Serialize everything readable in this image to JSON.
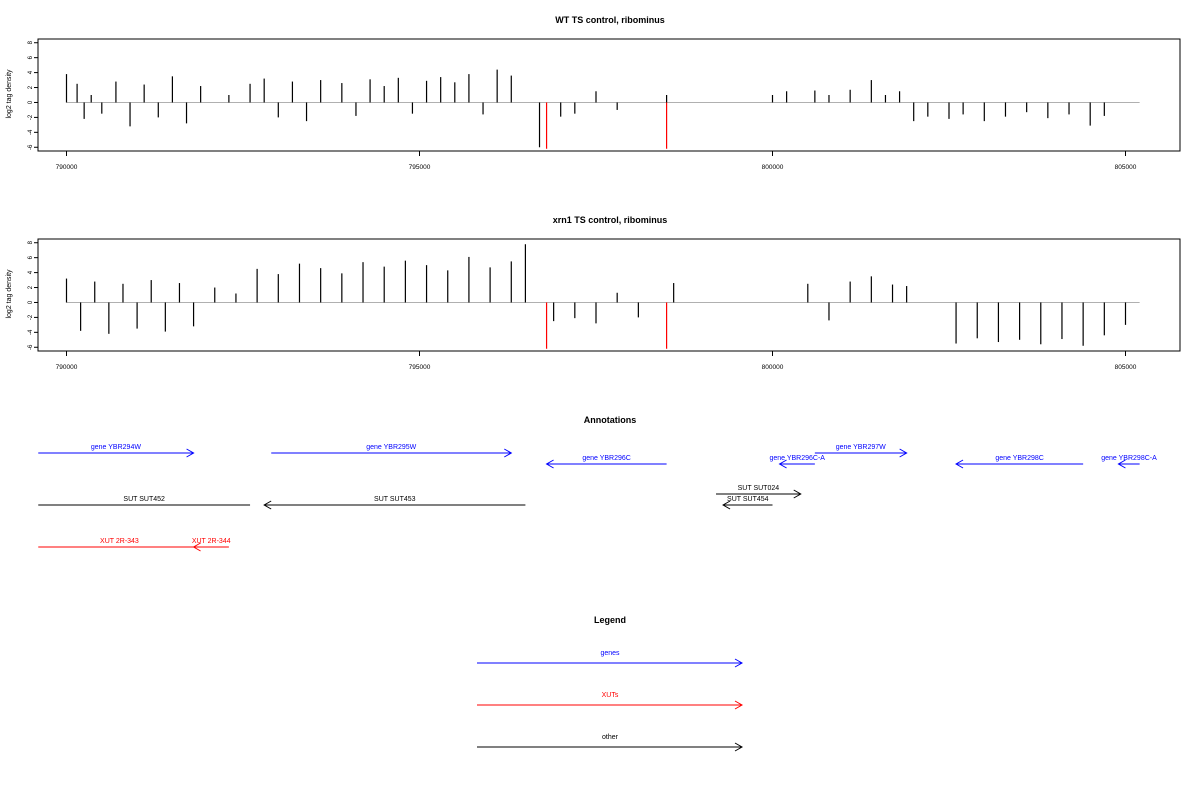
{
  "chart_data": [
    {
      "type": "bar",
      "title": "WT TS control, ribominus",
      "ylabel": "log2 tag density",
      "xlabel": "",
      "xlim": [
        790000,
        805000
      ],
      "ylim": [
        -6.5,
        8.5
      ],
      "xticks": [
        "790000",
        "795000",
        "800000",
        "805000"
      ],
      "yticks": [
        "8",
        "6",
        "4",
        "2",
        "0",
        "-2",
        "-4",
        "-6"
      ],
      "baseline": [
        790000,
        805200
      ],
      "series": [
        {
          "color": "#000000",
          "x": [
            790000,
            790150,
            790250,
            790350,
            790500,
            790700,
            790900,
            791100,
            791300,
            791500,
            791700,
            791900,
            792300,
            792600,
            792800,
            793000,
            793200,
            793400,
            793600,
            793900,
            794100,
            794300,
            794500,
            794700,
            794900,
            795100,
            795300,
            795500,
            795700,
            795900,
            796100,
            796300,
            796700,
            797000,
            797200,
            797500,
            797800,
            798500,
            800000,
            800200,
            800600,
            800800,
            801100,
            801400,
            801600,
            801800,
            802000,
            802200,
            802500,
            802700,
            803000,
            803300,
            803600,
            803900,
            804200,
            804500,
            804700
          ],
          "values": [
            3.8,
            2.5,
            -2.2,
            1.0,
            -1.5,
            2.8,
            -3.2,
            2.4,
            -2.0,
            3.5,
            -2.8,
            2.2,
            1.0,
            2.5,
            3.2,
            -2.0,
            2.8,
            -2.5,
            3.0,
            2.6,
            -1.8,
            3.1,
            2.2,
            3.3,
            -1.5,
            2.9,
            3.4,
            2.7,
            3.8,
            -1.6,
            4.4,
            3.6,
            -6.0,
            -1.9,
            -1.5,
            1.5,
            -1.0,
            1.0,
            1.0,
            1.5,
            1.6,
            1.0,
            1.7,
            3.0,
            1.0,
            1.5,
            -2.5,
            -1.9,
            -2.2,
            -1.6,
            -2.5,
            -1.9,
            -1.3,
            -2.1,
            -1.6,
            -3.1,
            -1.8
          ]
        },
        {
          "color": "#ff0000",
          "x": [
            796800,
            798500
          ],
          "values": [
            -6.2,
            -6.2
          ]
        }
      ]
    },
    {
      "type": "bar",
      "title": "xrn1 TS control, ribominus",
      "ylabel": "log2 tag density",
      "xlabel": "",
      "xlim": [
        790000,
        805000
      ],
      "ylim": [
        -6.5,
        8.5
      ],
      "xticks": [
        "790000",
        "795000",
        "800000",
        "805000"
      ],
      "yticks": [
        "8",
        "6",
        "4",
        "2",
        "0",
        "-2",
        "-4",
        "-6"
      ],
      "baseline": [
        790000,
        805200
      ],
      "series": [
        {
          "color": "#000000",
          "x": [
            790000,
            790200,
            790400,
            790600,
            790800,
            791000,
            791200,
            791400,
            791600,
            791800,
            792100,
            792400,
            792700,
            793000,
            793300,
            793600,
            793900,
            794200,
            794500,
            794800,
            795100,
            795400,
            795700,
            796000,
            796300,
            796500,
            796900,
            797200,
            797500,
            797800,
            798100,
            798600,
            800500,
            800800,
            801100,
            801400,
            801700,
            801900,
            802600,
            802900,
            803200,
            803500,
            803800,
            804100,
            804400,
            804700,
            805000
          ],
          "values": [
            3.2,
            -3.8,
            2.8,
            -4.2,
            2.5,
            -3.5,
            3.0,
            -3.9,
            2.6,
            -3.2,
            2.0,
            1.2,
            4.5,
            3.8,
            5.2,
            4.6,
            3.9,
            5.4,
            4.8,
            5.6,
            5.0,
            4.3,
            6.1,
            4.7,
            5.5,
            7.8,
            -2.5,
            -2.1,
            -2.8,
            1.3,
            -2.0,
            2.6,
            2.5,
            -2.4,
            2.8,
            3.5,
            2.4,
            2.2,
            -5.5,
            -4.8,
            -5.3,
            -5.0,
            -5.6,
            -4.9,
            -5.8,
            -4.4,
            -3.0
          ]
        },
        {
          "color": "#ff0000",
          "x": [
            796800,
            798500
          ],
          "values": [
            -6.2,
            -6.2
          ]
        }
      ]
    }
  ],
  "annotations": {
    "title": "Annotations",
    "xlim": [
      790000,
      805000
    ],
    "features": [
      {
        "label": "gene YBR294W",
        "start": 789600,
        "end": 791800,
        "row": 0,
        "strand": "+",
        "color": "#0000ff"
      },
      {
        "label": "gene YBR295W",
        "start": 792900,
        "end": 796300,
        "row": 0,
        "strand": "+",
        "color": "#0000ff"
      },
      {
        "label": "gene YBR296C",
        "start": 796800,
        "end": 798500,
        "row": 1,
        "strand": "-",
        "color": "#0000ff"
      },
      {
        "label": "gene YBR296C-A",
        "start": 800100,
        "end": 800600,
        "row": 1,
        "strand": "-",
        "color": "#0000ff"
      },
      {
        "label": "gene YBR297W",
        "start": 800600,
        "end": 801900,
        "row": 0,
        "strand": "+",
        "color": "#0000ff"
      },
      {
        "label": "gene YBR298C",
        "start": 802600,
        "end": 804400,
        "row": 1,
        "strand": "-",
        "color": "#0000ff"
      },
      {
        "label": "gene YBR298C-A",
        "start": 804900,
        "end": 805200,
        "row": 1,
        "strand": "-",
        "color": "#0000ff"
      },
      {
        "label": "SUT SUT452",
        "start": 789600,
        "end": 792600,
        "row": 2,
        "strand": "",
        "color": "#000000"
      },
      {
        "label": "SUT SUT453",
        "start": 792800,
        "end": 796500,
        "row": 2,
        "strand": "-",
        "color": "#000000"
      },
      {
        "label": "SUT SUT024",
        "start": 799200,
        "end": 800400,
        "row": 3,
        "strand": "+",
        "color": "#000000"
      },
      {
        "label": "SUT SUT454",
        "start": 799300,
        "end": 800000,
        "row": 4,
        "strand": "-",
        "color": "#000000"
      },
      {
        "label": "XUT 2R-343",
        "start": 789600,
        "end": 791900,
        "row": 5,
        "strand": "",
        "color": "#ff0000"
      },
      {
        "label": "XUT 2R-344",
        "start": 791800,
        "end": 792300,
        "row": 5,
        "strand": "-",
        "color": "#ff0000"
      }
    ]
  },
  "legend": {
    "title": "Legend",
    "items": [
      {
        "label": "genes",
        "color": "#0000ff"
      },
      {
        "label": "XUTs",
        "color": "#ff0000"
      },
      {
        "label": "other",
        "color": "#000000"
      }
    ]
  }
}
